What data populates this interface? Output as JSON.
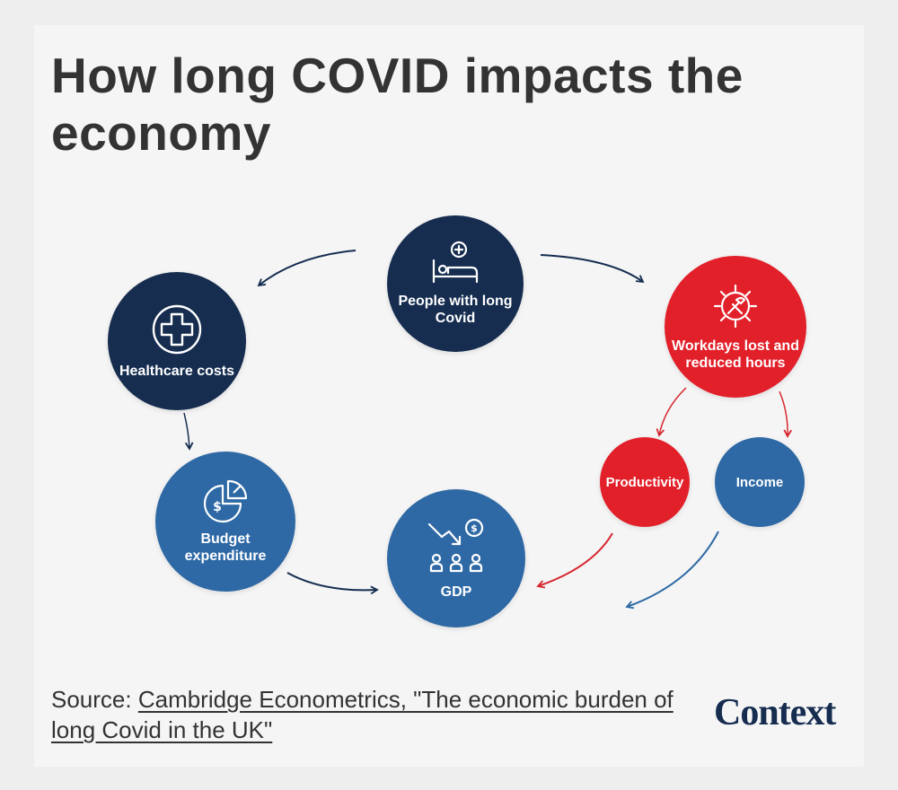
{
  "title": "How long COVID impacts the economy",
  "nodes": {
    "people": {
      "label": "People with long Covid",
      "icon": "bed-medical-icon"
    },
    "healthcare": {
      "label": "Healthcare costs",
      "icon": "medical-cross-icon"
    },
    "workdays": {
      "label": "Workdays lost and reduced hours",
      "icon": "gear-tools-icon"
    },
    "budget": {
      "label": "Budget expenditure",
      "icon": "budget-pie-chart-icon"
    },
    "gdp": {
      "label": "GDP",
      "icon": "gdp-decline-people-icon"
    },
    "productivity": {
      "label": "Productivity"
    },
    "income": {
      "label": "Income"
    }
  },
  "source": {
    "prefix": "Source: ",
    "link_text": "Cambridge Econometrics, \"The economic burden of long Covid in the UK\""
  },
  "brand": "Context",
  "colors": {
    "navy": "#162d50",
    "blue": "#2e69a5",
    "red": "#e2202a",
    "arrow_red": "#d6272f"
  }
}
